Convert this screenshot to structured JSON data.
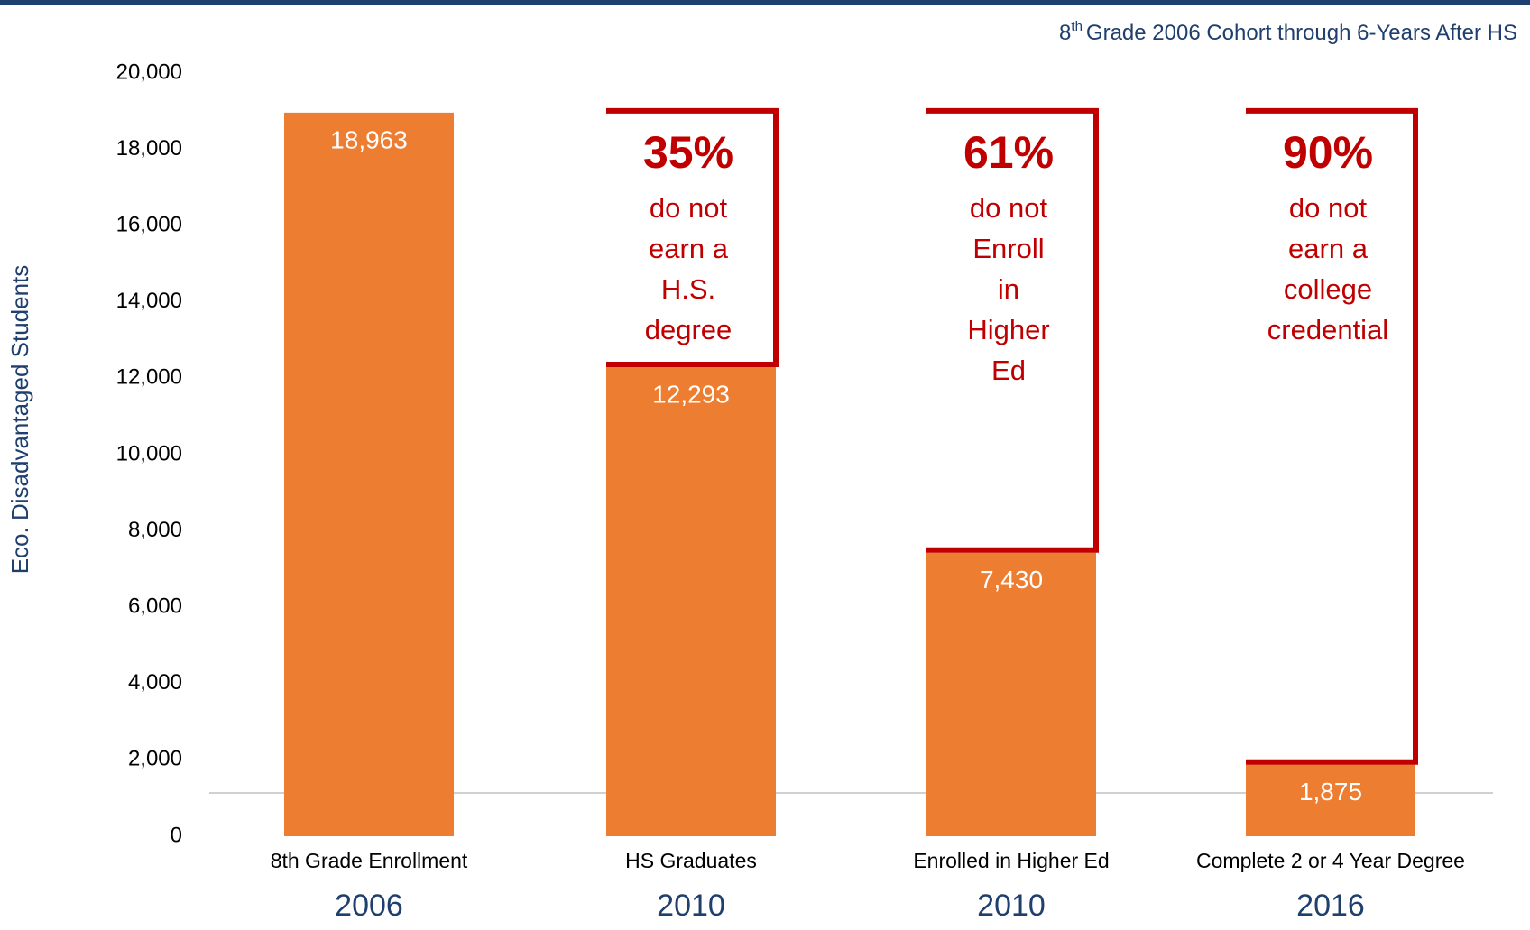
{
  "chart_data": {
    "type": "bar",
    "subtitle": {
      "base": "8",
      "sup": "th",
      "rest": "Grade 2006 Cohort through 6-Years After HS"
    },
    "y_axis_label": "Eco. Disadvantaged Students",
    "categories": [
      "8th Grade Enrollment",
      "HS Graduates",
      "Enrolled in Higher Ed",
      "Complete 2 or 4 Year Degree"
    ],
    "years": [
      "2006",
      "2010",
      "2010",
      "2016"
    ],
    "values": [
      18963,
      12293,
      7430,
      1875
    ],
    "value_labels": [
      "18,963",
      "12,293",
      "7,430",
      "1,875"
    ],
    "color": "#ed7d31",
    "ylim": [
      0,
      20000
    ],
    "yticks": [
      0,
      {
        "value": 2000,
        "label": "2,000"
      },
      {
        "value": 4000,
        "label": "4,000"
      },
      {
        "value": 6000,
        "label": "6,000"
      },
      {
        "value": 8000,
        "label": "8,000"
      },
      {
        "value": 10000,
        "label": "10,000"
      },
      {
        "value": 12000,
        "label": "12,000"
      },
      {
        "value": 14000,
        "label": "14,000"
      },
      {
        "value": 16000,
        "label": "16,000"
      },
      {
        "value": 18000,
        "label": "18,000"
      },
      {
        "value": 20000,
        "label": "20,000"
      }
    ],
    "annotations": [
      {
        "category": 1,
        "percent": "35%",
        "lines": [
          "do  not",
          "earn  a",
          "H.S.",
          "degree"
        ]
      },
      {
        "category": 2,
        "percent": "61%",
        "lines": [
          "do not",
          "Enroll",
          "in",
          "Higher",
          "Ed"
        ]
      },
      {
        "category": 3,
        "percent": "90%",
        "lines": [
          "do not",
          "earn a",
          "college",
          "credential"
        ]
      }
    ]
  }
}
